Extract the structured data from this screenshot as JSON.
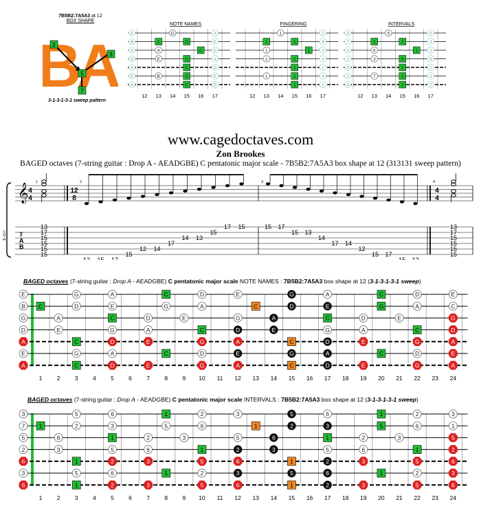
{
  "box_shape": {
    "code_line": "7B5B2:7A5A3",
    "suffix": " at 12",
    "label": "BOX SHAPE",
    "letters": "BA",
    "markers": [
      "2",
      "3",
      "5",
      "7"
    ],
    "sweep": "3-1-3-1-3-1 sweep pattern"
  },
  "mini_panels": {
    "titles": [
      "NOTE NAMES",
      "FINGERING",
      "INTERVALS"
    ],
    "frets": [
      "12",
      "13",
      "14",
      "15",
      "16",
      "17"
    ],
    "note_names": {
      "open": [
        "E",
        "B",
        "G",
        "D",
        "A",
        "E",
        "A"
      ],
      "rows": [
        [
          "",
          "",
          "G",
          "",
          "",
          "A"
        ],
        [
          "",
          "C",
          "",
          "D",
          "",
          "E"
        ],
        [
          "",
          "A",
          "",
          "",
          "C",
          "D"
        ],
        [
          "",
          "E",
          "",
          "G",
          "",
          "A"
        ],
        [
          "",
          "",
          "",
          "C",
          "",
          "D"
        ],
        [
          "",
          "B",
          "",
          "D",
          "",
          "E"
        ],
        [
          "",
          "",
          "",
          "C",
          "",
          "D"
        ]
      ]
    },
    "fingering": {
      "open": [
        "",
        "",
        "",
        "",
        "",
        "",
        ""
      ],
      "rows": [
        [
          "",
          "",
          "1",
          "",
          "",
          "2"
        ],
        [
          "",
          "1",
          "",
          "1",
          "",
          "4"
        ],
        [
          "",
          "1",
          "",
          "",
          "1",
          "3"
        ],
        [
          "",
          "1",
          "",
          "1",
          "",
          "4"
        ],
        [
          "",
          "",
          "",
          "1",
          "",
          "2"
        ],
        [
          "",
          "1",
          "",
          "1",
          "",
          "4"
        ],
        [
          "",
          "",
          "",
          "1",
          "",
          "2"
        ]
      ]
    },
    "intervals": {
      "open": [
        "3",
        "7",
        "5",
        "2",
        "6",
        "3",
        "6"
      ],
      "rows": [
        [
          "",
          "",
          "5",
          "",
          "",
          "6"
        ],
        [
          "",
          "1",
          "",
          "2",
          "",
          "3"
        ],
        [
          "",
          "6",
          "",
          "",
          "1",
          "2"
        ],
        [
          "",
          "3",
          "",
          "5",
          "",
          "6"
        ],
        [
          "",
          "",
          "",
          "1",
          "",
          "2"
        ],
        [
          "",
          "7",
          "",
          "2",
          "",
          "3"
        ],
        [
          "",
          "",
          "",
          "1",
          "",
          "2"
        ]
      ]
    }
  },
  "site": "www.cagedoctaves.com",
  "author": "Zon Brookes",
  "subtitle": "BAGED octaves (7-string guitar : Drop A - AEADGBE) C pentatonic major scale - 7B5B2:7A5A3 box shape at 12 (313131 sweep pattern)",
  "score": {
    "tuning_label": "E-G7",
    "tab_letters": [
      "T",
      "A",
      "B"
    ],
    "time1": "4/4",
    "time2": "12/8",
    "time3": "4/4",
    "measure_numbers": [
      "1",
      "2",
      "3",
      "4"
    ],
    "tab": [
      [
        "13",
        "17",
        "15",
        "15",
        "15",
        "15"
      ],
      [
        "12",
        "15",
        "17",
        "15",
        "12",
        "14",
        "17",
        "14",
        "13",
        "15",
        "17",
        "15"
      ],
      [
        "15",
        "17",
        "15",
        "13",
        "14",
        "17",
        "14",
        "12",
        "15",
        "17",
        "15",
        "12"
      ],
      [
        "13",
        "17",
        "15",
        "15",
        "15",
        "15"
      ]
    ]
  },
  "diagram1": {
    "bold_italic": "BAGED octaves",
    "part1": " (7-string guitar : ",
    "italic": "Drop A",
    "part2": " - AEADGBE) ",
    "bold1": "C pentatonic major scale",
    "part3": " NOTE NAMES : ",
    "bold2": "7B5B2:7A5A3",
    "part4": " box shape at 12 (",
    "bold3": "3-1-3-1-3-1 sweep",
    "part5": ")"
  },
  "diagram2": {
    "bold_italic": "BAGED octaves",
    "part1": " (7-string guitar : ",
    "italic": "Drop A",
    "part2": " - AEADGBE) ",
    "bold1": "C pentatonic major scale",
    "part3": " INTERVALS : ",
    "bold2": "7B5B2:7A5A3",
    "part4": " box shape at 12 (",
    "bold3": "3-1-3-1-3-1 sweep",
    "part5": ")"
  },
  "fret_numbers": [
    "1",
    "2",
    "3",
    "4",
    "5",
    "6",
    "7",
    "8",
    "9",
    "10",
    "11",
    "12",
    "13",
    "14",
    "15",
    "16",
    "17",
    "18",
    "19",
    "20",
    "21",
    "22",
    "23",
    "24"
  ],
  "note_fretboard": {
    "open": [
      "E",
      "B",
      "G",
      "D",
      "A",
      "E",
      "A"
    ],
    "rows": [
      [
        [
          "G",
          3
        ],
        [
          "A",
          5
        ],
        [
          "C",
          8
        ],
        [
          "D",
          10
        ],
        [
          "E",
          12
        ],
        [
          "G",
          15
        ],
        [
          "A",
          17
        ],
        [
          "C",
          20
        ],
        [
          "D",
          22
        ],
        [
          "E",
          24
        ]
      ],
      [
        [
          "C",
          1
        ],
        [
          "D",
          3
        ],
        [
          "E",
          5
        ],
        [
          "G",
          8
        ],
        [
          "A",
          10
        ],
        [
          "C",
          13
        ],
        [
          "D",
          15
        ],
        [
          "E",
          17
        ],
        [
          "G",
          20
        ],
        [
          "A",
          22
        ],
        [
          "C",
          24
        ]
      ],
      [
        [
          "A",
          2
        ],
        [
          "C",
          5
        ],
        [
          "D",
          7
        ],
        [
          "E",
          9
        ],
        [
          "G",
          12
        ],
        [
          "A",
          14
        ],
        [
          "C",
          17
        ],
        [
          "D",
          19
        ],
        [
          "E",
          21
        ],
        [
          "G",
          24
        ]
      ],
      [
        [
          "E",
          2
        ],
        [
          "G",
          5
        ],
        [
          "A",
          7
        ],
        [
          "C",
          10
        ],
        [
          "D",
          12
        ],
        [
          "E",
          14
        ],
        [
          "G",
          17
        ],
        [
          "A",
          19
        ],
        [
          "C",
          22
        ],
        [
          "D",
          24
        ]
      ],
      [
        [
          "C",
          3
        ],
        [
          "D",
          5
        ],
        [
          "E",
          7
        ],
        [
          "G",
          10
        ],
        [
          "A",
          12
        ],
        [
          "C",
          15
        ],
        [
          "D",
          17
        ],
        [
          "E",
          19
        ],
        [
          "G",
          22
        ],
        [
          "A",
          24
        ]
      ],
      [
        [
          "G",
          3
        ],
        [
          "A",
          5
        ],
        [
          "C",
          8
        ],
        [
          "D",
          10
        ],
        [
          "E",
          12
        ],
        [
          "G",
          15
        ],
        [
          "A",
          17
        ],
        [
          "C",
          20
        ],
        [
          "D",
          22
        ],
        [
          "E",
          24
        ]
      ],
      [
        [
          "C",
          3
        ],
        [
          "D",
          5
        ],
        [
          "E",
          7
        ],
        [
          "G",
          10
        ],
        [
          "A",
          12
        ],
        [
          "C",
          15
        ],
        [
          "D",
          17
        ],
        [
          "E",
          19
        ],
        [
          "G",
          22
        ],
        [
          "A",
          24
        ]
      ]
    ]
  },
  "interval_fretboard": {
    "open": [
      "3",
      "7",
      "5",
      "2",
      "6",
      "3",
      "6"
    ],
    "rows": [
      [
        [
          "5",
          3
        ],
        [
          "6",
          5
        ],
        [
          "1",
          8
        ],
        [
          "2",
          10
        ],
        [
          "3",
          12
        ],
        [
          "5",
          15
        ],
        [
          "6",
          17
        ],
        [
          "1",
          20
        ],
        [
          "2",
          22
        ],
        [
          "3",
          24
        ]
      ],
      [
        [
          "1",
          1
        ],
        [
          "2",
          3
        ],
        [
          "3",
          5
        ],
        [
          "5",
          8
        ],
        [
          "6",
          10
        ],
        [
          "1",
          13
        ],
        [
          "2",
          15
        ],
        [
          "3",
          17
        ],
        [
          "5",
          20
        ],
        [
          "6",
          22
        ],
        [
          "1",
          24
        ]
      ],
      [
        [
          "6",
          2
        ],
        [
          "1",
          5
        ],
        [
          "2",
          7
        ],
        [
          "3",
          9
        ],
        [
          "5",
          12
        ],
        [
          "6",
          14
        ],
        [
          "1",
          17
        ],
        [
          "2",
          19
        ],
        [
          "3",
          21
        ],
        [
          "5",
          24
        ]
      ],
      [
        [
          "3",
          2
        ],
        [
          "5",
          5
        ],
        [
          "6",
          7
        ],
        [
          "1",
          10
        ],
        [
          "2",
          12
        ],
        [
          "3",
          14
        ],
        [
          "5",
          17
        ],
        [
          "6",
          19
        ],
        [
          "1",
          22
        ],
        [
          "2",
          24
        ]
      ],
      [
        [
          "1",
          3
        ],
        [
          "2",
          5
        ],
        [
          "3",
          7
        ],
        [
          "5",
          10
        ],
        [
          "6",
          12
        ],
        [
          "1",
          15
        ],
        [
          "2",
          17
        ],
        [
          "3",
          19
        ],
        [
          "5",
          22
        ],
        [
          "6",
          24
        ]
      ],
      [
        [
          "5",
          3
        ],
        [
          "6",
          5
        ],
        [
          "1",
          8
        ],
        [
          "2",
          10
        ],
        [
          "3",
          12
        ],
        [
          "5",
          15
        ],
        [
          "6",
          17
        ],
        [
          "1",
          20
        ],
        [
          "2",
          22
        ],
        [
          "3",
          24
        ]
      ],
      [
        [
          "1",
          3
        ],
        [
          "2",
          5
        ],
        [
          "3",
          7
        ],
        [
          "5",
          10
        ],
        [
          "6",
          12
        ],
        [
          "1",
          15
        ],
        [
          "2",
          17
        ],
        [
          "3",
          19
        ],
        [
          "5",
          22
        ],
        [
          "6",
          24
        ]
      ]
    ]
  },
  "highlights": {
    "green": [
      [
        1,
        1
      ],
      [
        0,
        8
      ],
      [
        4,
        3
      ],
      [
        6,
        3
      ],
      [
        2,
        5
      ],
      [
        5,
        8
      ],
      [
        3,
        10
      ],
      [
        1,
        20
      ],
      [
        0,
        20
      ],
      [
        2,
        17
      ],
      [
        3,
        22
      ],
      [
        5,
        20
      ],
      [
        4,
        3
      ]
    ],
    "orange": [
      [
        1,
        13
      ],
      [
        4,
        15
      ],
      [
        6,
        15
      ]
    ],
    "black": [
      [
        0,
        15
      ],
      [
        1,
        15
      ],
      [
        1,
        17
      ],
      [
        2,
        14
      ],
      [
        3,
        12
      ],
      [
        3,
        14
      ],
      [
        4,
        17
      ],
      [
        5,
        12
      ],
      [
        5,
        15
      ],
      [
        5,
        17
      ],
      [
        6,
        17
      ]
    ],
    "red": [
      [
        4,
        0
      ],
      [
        6,
        0
      ],
      [
        4,
        5
      ],
      [
        4,
        7
      ],
      [
        4,
        10
      ],
      [
        4,
        12
      ],
      [
        4,
        19
      ],
      [
        4,
        22
      ],
      [
        4,
        24
      ],
      [
        6,
        5
      ],
      [
        6,
        7
      ],
      [
        6,
        10
      ],
      [
        6,
        12
      ],
      [
        6,
        19
      ],
      [
        6,
        22
      ],
      [
        6,
        24
      ],
      [
        2,
        24
      ],
      [
        5,
        24
      ],
      [
        3,
        24
      ]
    ]
  },
  "colors": {
    "green": "#22bb33",
    "orange": "#ee8822",
    "red": "#dd2222",
    "black": "#111111",
    "brand_orange": "#f07d1a"
  }
}
